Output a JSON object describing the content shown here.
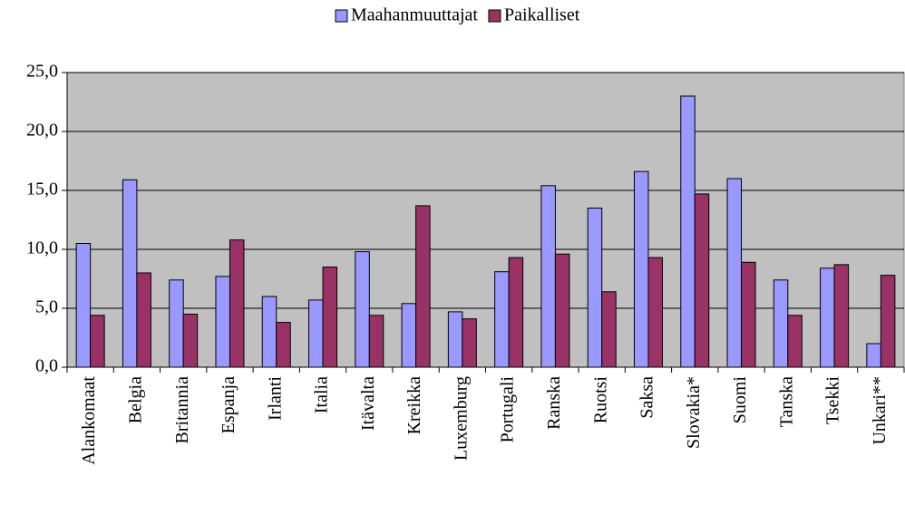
{
  "chart_data": {
    "type": "bar",
    "categories": [
      "Alankomaat",
      "Belgia",
      "Britannia",
      "Espanja",
      "Irlanti",
      "Italia",
      "Itävalta",
      "Kreikka",
      "Luxemburg",
      "Portugali",
      "Ranska",
      "Ruotsi",
      "Saksa",
      "Slovakia*",
      "Suomi",
      "Tanska",
      "Tsekki",
      "Unkari**"
    ],
    "series": [
      {
        "name": "Maahanmuuttajat",
        "color": "#9999ff",
        "values": [
          10.5,
          15.9,
          7.4,
          7.7,
          6.0,
          5.7,
          9.8,
          5.4,
          4.7,
          8.1,
          15.4,
          13.5,
          16.6,
          23.0,
          16.0,
          7.4,
          8.4,
          2.0
        ]
      },
      {
        "name": "Paikalliset",
        "color": "#993366",
        "values": [
          4.4,
          8.0,
          4.5,
          10.8,
          3.8,
          8.5,
          4.4,
          13.7,
          4.1,
          9.3,
          9.6,
          6.4,
          9.3,
          14.7,
          8.9,
          4.4,
          8.7,
          7.8
        ]
      }
    ],
    "ylim": [
      0,
      25
    ],
    "yticks": [
      {
        "value": 0,
        "label": "0,0"
      },
      {
        "value": 5,
        "label": "5,0"
      },
      {
        "value": 10,
        "label": "10,0"
      },
      {
        "value": 15,
        "label": "15,0"
      },
      {
        "value": 20,
        "label": "20,0"
      },
      {
        "value": 25,
        "label": "25,0"
      }
    ],
    "grid": true,
    "legend": "top"
  }
}
